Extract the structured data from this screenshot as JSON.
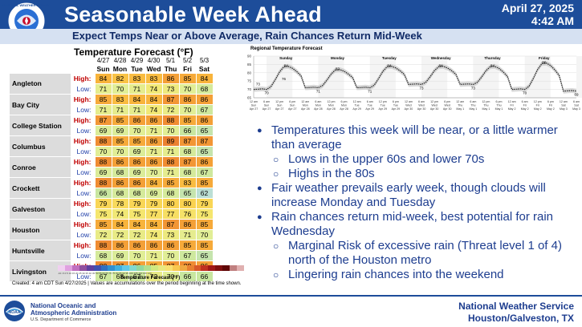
{
  "header": {
    "title": "Seasonable Week Ahead",
    "date": "April 27, 2025",
    "time": "4:42 AM",
    "subtitle": "Expect Temps Near or Above Average, Rain Chances Return Mid-Week",
    "logo_text": "NATIONAL WEATHER SERVICE"
  },
  "table": {
    "title": "Temperature Forecast (°F)",
    "high_label": "High:",
    "low_label": "Low:",
    "columns": [
      {
        "date": "4/27",
        "day": "Sun"
      },
      {
        "date": "4/28",
        "day": "Mon"
      },
      {
        "date": "4/29",
        "day": "Tue"
      },
      {
        "date": "4/30",
        "day": "Wed"
      },
      {
        "date": "5/1",
        "day": "Thu"
      },
      {
        "date": "5/2",
        "day": "Fri"
      },
      {
        "date": "5/3",
        "day": "Sat"
      }
    ],
    "cities": [
      {
        "name": "Angleton",
        "high": [
          84,
          82,
          83,
          83,
          86,
          85,
          84
        ],
        "low": [
          71,
          70,
          71,
          74,
          73,
          70,
          68
        ]
      },
      {
        "name": "Bay City",
        "high": [
          85,
          83,
          84,
          84,
          87,
          86,
          86
        ],
        "low": [
          71,
          71,
          71,
          74,
          72,
          70,
          67
        ]
      },
      {
        "name": "College Station",
        "high": [
          87,
          85,
          86,
          86,
          88,
          85,
          86
        ],
        "low": [
          69,
          69,
          70,
          71,
          70,
          66,
          65
        ]
      },
      {
        "name": "Columbus",
        "high": [
          88,
          85,
          85,
          86,
          89,
          87,
          87
        ],
        "low": [
          70,
          70,
          69,
          71,
          71,
          68,
          65
        ]
      },
      {
        "name": "Conroe",
        "high": [
          88,
          86,
          86,
          86,
          88,
          87,
          86
        ],
        "low": [
          69,
          68,
          69,
          70,
          71,
          68,
          67
        ]
      },
      {
        "name": "Crockett",
        "high": [
          88,
          86,
          86,
          84,
          85,
          83,
          85
        ],
        "low": [
          66,
          68,
          68,
          69,
          68,
          65,
          62
        ]
      },
      {
        "name": "Galveston",
        "high": [
          79,
          78,
          79,
          79,
          80,
          80,
          79
        ],
        "low": [
          75,
          74,
          75,
          77,
          77,
          76,
          75
        ]
      },
      {
        "name": "Houston",
        "high": [
          85,
          84,
          84,
          84,
          87,
          86,
          85
        ],
        "low": [
          72,
          72,
          72,
          74,
          73,
          71,
          70
        ]
      },
      {
        "name": "Huntsville",
        "high": [
          88,
          86,
          86,
          86,
          86,
          85,
          85
        ],
        "low": [
          68,
          69,
          70,
          71,
          70,
          67,
          65
        ]
      },
      {
        "name": "Livingston",
        "high": [
          88,
          87,
          86,
          85,
          87,
          88,
          86
        ],
        "low": [
          67,
          68,
          67,
          72,
          70,
          66,
          66
        ]
      }
    ],
    "colorbar_label": "Temperature Forecast (°F)",
    "colorbar_ticks": "-10 -5 0 5 10 15 20 25 30 35 40 45 50 55 60 65 70 75 80 85 90 95 100 105 110 115 120",
    "note": "Created: 4 am CDT Sun 4/27/2025  |  Values are accumulations over the period beginning at the time shown."
  },
  "graph": {
    "title": "Regional Temperature Forecast",
    "chart_data": {
      "type": "line",
      "title": "Regional Temperature Forecast",
      "ylim": [
        65,
        90
      ],
      "yticks": [
        65,
        70,
        75,
        80,
        85,
        90
      ],
      "day_labels": [
        "Sunday",
        "Monday",
        "Tuesday",
        "Wednesday",
        "Thursday",
        "Friday"
      ],
      "x_labels": [
        "12 am Sun",
        "6 am Sun",
        "12 pm Sun",
        "6 pm Sun",
        "12 am Mon",
        "6 am Mon",
        "12 pm Mon",
        "6 pm Mon",
        "12 am Tue",
        "6 am Tue",
        "12 pm Tue",
        "6 pm Tue",
        "12 am Wed",
        "6 am Wed",
        "12 pm Wed",
        "6 pm Wed",
        "12 am Thu",
        "6 am Thu",
        "12 pm Thu",
        "6 pm Thu",
        "12 am Fri",
        "6 am Fri",
        "12 pm Fri",
        "6 pm Fri",
        "12 am Sat",
        "6 am Sat",
        "12 pm Sat",
        "6 pm Sat"
      ],
      "x_label_dates": [
        "Apr 27",
        "Apr 27",
        "Apr 27",
        "Apr 27",
        "Apr 28",
        "Apr 28",
        "Apr 28",
        "Apr 28",
        "Apr 29",
        "Apr 29",
        "Apr 29",
        "Apr 29",
        "Apr 30",
        "Apr 30",
        "Apr 30",
        "Apr 30",
        "May 1",
        "May 1",
        "May 1",
        "May 1",
        "May 2",
        "May 2",
        "May 2",
        "May 2",
        "May 3",
        "May 3",
        "May 3",
        "May 3"
      ],
      "highs": [
        84,
        82,
        84,
        84,
        84,
        86
      ],
      "lows": [
        70,
        71,
        71,
        73,
        73,
        70,
        69
      ],
      "high_labels": [
        "84",
        "82",
        "84",
        "84",
        "84",
        "86"
      ],
      "low_labels": [
        "70",
        "71",
        "71",
        "73",
        "73",
        "70",
        "69"
      ],
      "start_labels": [
        "73",
        "76"
      ]
    }
  },
  "bullets": [
    {
      "level": 1,
      "text": "Temperatures this week will be near, or a little warmer than average"
    },
    {
      "level": 2,
      "text": "Lows in the upper 60s and lower 70s"
    },
    {
      "level": 2,
      "text": "Highs in the 80s"
    },
    {
      "level": 1,
      "text": "Fair weather prevails early week, though clouds will increase Monday and Tuesday"
    },
    {
      "level": 1,
      "text": "Rain chances return mid-week, best potential for rain Wednesday"
    },
    {
      "level": 2,
      "text": "Marginal Risk of excessive rain (Threat level 1 of 4) north of the Houston metro"
    },
    {
      "level": 2,
      "text": "Lingering rain chances into the weekend"
    }
  ],
  "footer": {
    "agency_line1": "National Oceanic and",
    "agency_line2": "Atmospheric Administration",
    "department": "U.S. Department of Commerce",
    "office_line1": "National Weather Service",
    "office_line2": "Houston/Galveston, TX",
    "noaa_logo_text": "NOAA"
  },
  "colors": {
    "header_blue": "#1d4d9a",
    "bullet_text": "#1d3d8f",
    "high_label": "#c00000",
    "low_label": "#1e3ea8"
  }
}
